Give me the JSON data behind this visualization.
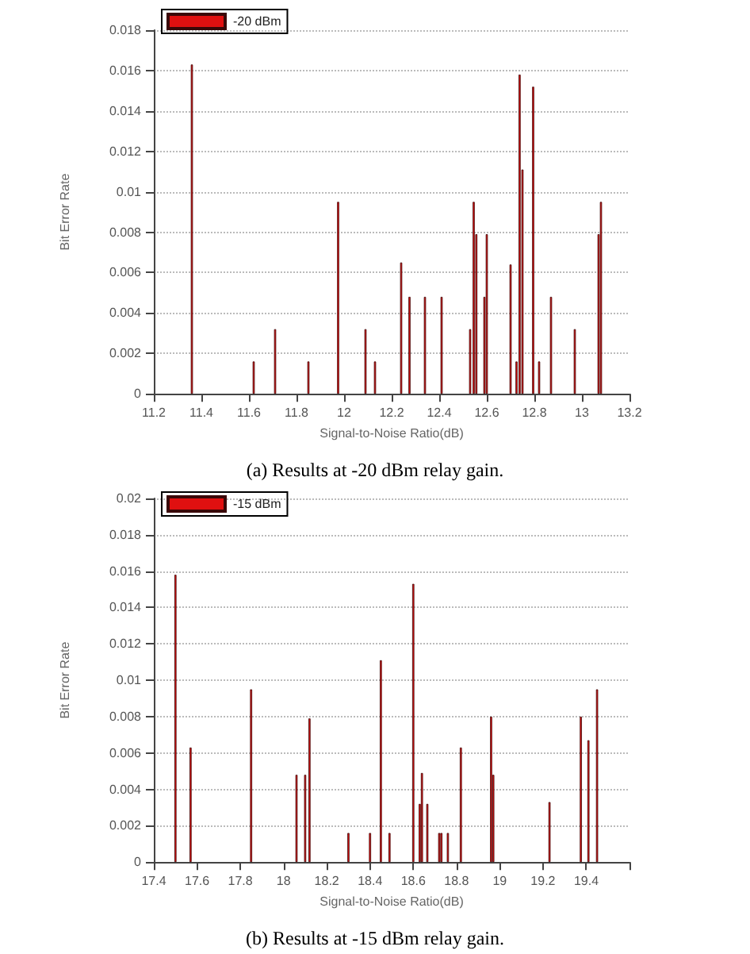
{
  "chart_data": [
    {
      "type": "bar",
      "xlabel": "Signal-to-Noise Ratio(dB)",
      "ylabel": "Bit Error Rate",
      "annotations": [
        "(a) Results at -20 dBm relay gain."
      ],
      "legend": "top left",
      "grid": "y",
      "xlim": [
        11.2,
        13.2
      ],
      "xticks": [
        11.2,
        11.4,
        11.6,
        11.8,
        12,
        12.2,
        12.4,
        12.6,
        12.8,
        13,
        13.2
      ],
      "ylim": [
        0,
        0.018
      ],
      "yticks": [
        0,
        0.002,
        0.004,
        0.006,
        0.008,
        0.01,
        0.012,
        0.014,
        0.016,
        0.018
      ],
      "series": [
        {
          "name": "-20 dBm",
          "color": "#e01010",
          "x": [
            11.36,
            11.62,
            11.71,
            11.85,
            11.975,
            12.09,
            12.13,
            12.24,
            12.275,
            12.34,
            12.41,
            12.53,
            12.545,
            12.556,
            12.59,
            12.6,
            12.7,
            12.725,
            12.738,
            12.75,
            12.795,
            12.82,
            12.87,
            12.97,
            13.07,
            13.08
          ],
          "values": [
            0.0163,
            0.0016,
            0.0032,
            0.0016,
            0.0095,
            0.0032,
            0.0016,
            0.0065,
            0.0048,
            0.0048,
            0.0048,
            0.0032,
            0.0095,
            0.0079,
            0.0048,
            0.0079,
            0.0064,
            0.0016,
            0.0158,
            0.0111,
            0.0152,
            0.0016,
            0.0048,
            0.0032,
            0.0079,
            0.0095
          ]
        }
      ]
    },
    {
      "type": "bar",
      "xlabel": "Signal-to-Noise Ratio(dB)",
      "ylabel": "Bit Error Rate",
      "annotations": [
        "(b) Results at -15 dBm relay gain."
      ],
      "legend": "top left",
      "grid": "y",
      "xlim": [
        17.4,
        19.6
      ],
      "xticks": [
        17.4,
        17.6,
        17.8,
        18,
        18.2,
        18.4,
        18.6,
        18.8,
        19,
        19.2,
        19.4,
        {
          "value": 19.6,
          "label": null
        }
      ],
      "ylim": [
        0,
        0.02
      ],
      "yticks": [
        0,
        0.002,
        0.004,
        0.006,
        0.008,
        0.01,
        0.012,
        0.014,
        0.016,
        0.018,
        0.02
      ],
      "series": [
        {
          "name": "-15 dBm",
          "color": "#e01010",
          "x": [
            17.5,
            17.57,
            17.85,
            18.06,
            18.1,
            18.12,
            18.3,
            18.4,
            18.45,
            18.49,
            18.6,
            18.63,
            18.64,
            18.665,
            18.72,
            18.73,
            18.76,
            18.82,
            18.96,
            18.97,
            19.23,
            19.375,
            19.41,
            19.45
          ],
          "values": [
            0.0158,
            0.0063,
            0.0095,
            0.0048,
            0.0048,
            0.0079,
            0.0016,
            0.0016,
            0.0111,
            0.0016,
            0.0153,
            0.0032,
            0.0049,
            0.0032,
            0.0016,
            0.0016,
            0.0016,
            0.0063,
            0.008,
            0.0048,
            0.0033,
            0.008,
            0.0067,
            0.0095
          ]
        }
      ]
    }
  ]
}
